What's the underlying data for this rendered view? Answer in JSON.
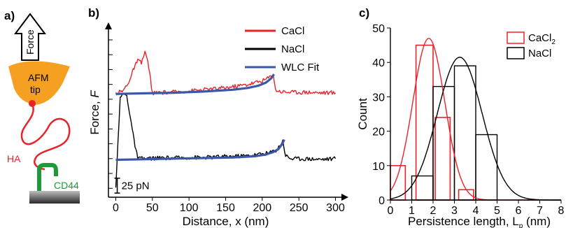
{
  "panel_labels": [
    "a)",
    "b)",
    "c)"
  ],
  "schematic": {
    "force_label": "Force",
    "tip_label_1": "AFM",
    "tip_label_2": "tip",
    "ha_label": "HA",
    "cd44_label": "CD44",
    "colors": {
      "tip": "#f5a020",
      "ha": "#e8232a",
      "cd44": "#1e9a3a"
    }
  },
  "chart_data": [
    {
      "type": "line",
      "xlabel": "Distance, x (nm)",
      "ylabel": "Force, F",
      "xlim": [
        -10,
        310
      ],
      "xticks": [
        0,
        50,
        100,
        150,
        200,
        250,
        300
      ],
      "y_units": "pN",
      "ylim": [
        -15,
        270
      ],
      "ytick_step_pN": 25,
      "scale_bar": {
        "label": "25 pN",
        "value": 25,
        "position": "bottom-left"
      },
      "grid": false,
      "legend": {
        "position": "top-right",
        "entries": [
          "CaCl",
          "NaCl",
          "WLC Fit"
        ]
      },
      "series": [
        {
          "name": "CaCl",
          "color": "#e8232a",
          "baseline": 160,
          "x": [
            0,
            5,
            10,
            15,
            20,
            25,
            30,
            35,
            40,
            45,
            50,
            60,
            80,
            100,
            120,
            140,
            160,
            180,
            200,
            210,
            215,
            218,
            225,
            240,
            260,
            280,
            300
          ],
          "y": [
            160,
            162,
            164,
            174,
            185,
            203,
            215,
            211,
            230,
            205,
            160,
            161,
            162,
            164,
            166,
            168,
            171,
            175,
            181,
            187,
            193,
            166,
            163,
            162,
            162,
            161,
            161
          ]
        },
        {
          "name": "NaCl",
          "color": "#000000",
          "baseline": 50,
          "x": [
            0,
            3,
            6,
            10,
            15,
            20,
            25,
            30,
            40,
            60,
            80,
            100,
            120,
            140,
            160,
            180,
            200,
            210,
            220,
            228,
            232,
            240,
            260,
            280,
            300
          ],
          "y": [
            0,
            80,
            150,
            160,
            155,
            120,
            80,
            50,
            50,
            51,
            51,
            52,
            52,
            53,
            54,
            55,
            58,
            60,
            65,
            80,
            55,
            50,
            50,
            49,
            50
          ]
        },
        {
          "name": "WLC Fit",
          "color": "#3b58a8",
          "segments": [
            {
              "x": [
                0,
                40,
                80,
                120,
                160,
                180,
                195,
                205,
                212,
                216
              ],
              "y": [
                159,
                160,
                161,
                163,
                166,
                169,
                173,
                178,
                185,
                192
              ]
            },
            {
              "x": [
                0,
                40,
                80,
                120,
                160,
                190,
                205,
                215,
                222,
                227,
                230
              ],
              "y": [
                48,
                49,
                50,
                51,
                52,
                54,
                57,
                61,
                66,
                74,
                82
              ]
            }
          ]
        }
      ]
    },
    {
      "type": "bar",
      "subtype": "histogram-with-gaussian-fit",
      "xlabel": "Persistence length, L",
      "xlabel_sub": "p",
      "xlabel_unit": "(nm)",
      "ylabel": "Count",
      "xlim": [
        0,
        8
      ],
      "ylim": [
        0,
        50
      ],
      "xticks": [
        0,
        1,
        2,
        3,
        4,
        5,
        6,
        7,
        8
      ],
      "yticks": [
        0,
        10,
        20,
        30,
        40,
        50
      ],
      "grid": false,
      "legend": {
        "position": "top-right",
        "entries": [
          "CaCl2",
          "NaCl"
        ]
      },
      "legend_text": {
        "cacl_main": "CaCl",
        "cacl_sub": "2",
        "nacl": "NaCl"
      },
      "series": [
        {
          "name": "CaCl2",
          "color": "#e8232a",
          "bins": [
            [
              0.0,
              0.7
            ],
            [
              1.2,
              2.0
            ],
            [
              2.1,
              2.8
            ],
            [
              3.2,
              3.9
            ]
          ],
          "values": [
            10,
            45,
            24,
            3
          ],
          "fit": {
            "mean": 1.8,
            "sigma": 0.75,
            "peak": 47
          }
        },
        {
          "name": "NaCl",
          "color": "#000000",
          "bins": [
            [
              1.0,
              2.0
            ],
            [
              2.0,
              3.0
            ],
            [
              3.0,
              4.0
            ],
            [
              4.0,
              5.0
            ]
          ],
          "values": [
            7,
            33,
            39,
            19
          ],
          "fit": {
            "mean": 3.25,
            "sigma": 1.05,
            "peak": 41.5
          }
        }
      ]
    }
  ]
}
